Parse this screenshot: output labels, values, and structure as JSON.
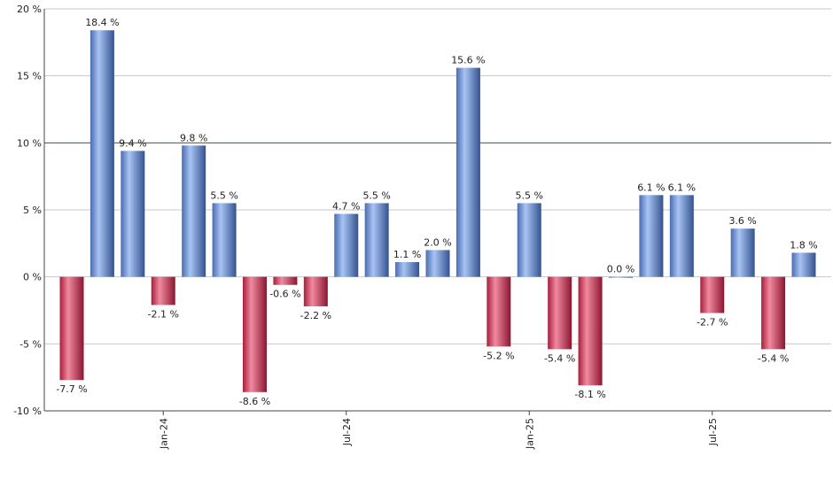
{
  "chart_data": {
    "type": "bar",
    "categories": [
      null,
      null,
      null,
      "Jan-24",
      null,
      null,
      null,
      null,
      null,
      "Jul-24",
      null,
      null,
      null,
      null,
      null,
      "Jan-25",
      null,
      null,
      null,
      null,
      null,
      "Jul-25",
      null,
      null,
      null
    ],
    "values": [
      -7.7,
      18.4,
      9.4,
      -2.1,
      9.8,
      5.5,
      -8.6,
      -0.6,
      -2.2,
      4.7,
      5.5,
      1.1,
      2.0,
      15.6,
      -5.2,
      5.5,
      -5.4,
      -8.1,
      0.0,
      6.1,
      6.1,
      -2.7,
      3.6,
      -5.4,
      1.8
    ],
    "value_labels": [
      "-7.7 %",
      "18.4 %",
      "9.4 %",
      "-2.1 %",
      "9.8 %",
      "5.5 %",
      "-8.6 %",
      "-0.6 %",
      "-2.2 %",
      "4.7 %",
      "5.5 %",
      "1.1 %",
      "2.0 %",
      "15.6 %",
      "-5.2 %",
      "5.5 %",
      "-5.4 %",
      "-8.1 %",
      "0.0 %",
      "6.1 %",
      "6.1 %",
      "-2.7 %",
      "3.6 %",
      "-5.4 %",
      "1.8 %"
    ],
    "positive_color": "#7096e0",
    "negative_color": "#c8304e",
    "ylim": [
      -10,
      20
    ],
    "yticks": [
      {
        "value": -10,
        "label": "-10 %"
      },
      {
        "value": -5,
        "label": "-5 %"
      },
      {
        "value": 0,
        "label": "0 %"
      },
      {
        "value": 5,
        "label": "5 %"
      },
      {
        "value": 10,
        "label": "10 %"
      },
      {
        "value": 15,
        "label": "15 %"
      },
      {
        "value": 20,
        "label": "20 %"
      }
    ],
    "grid": true,
    "reference_line": {
      "value": 10,
      "color": "#2a7a2a"
    }
  }
}
